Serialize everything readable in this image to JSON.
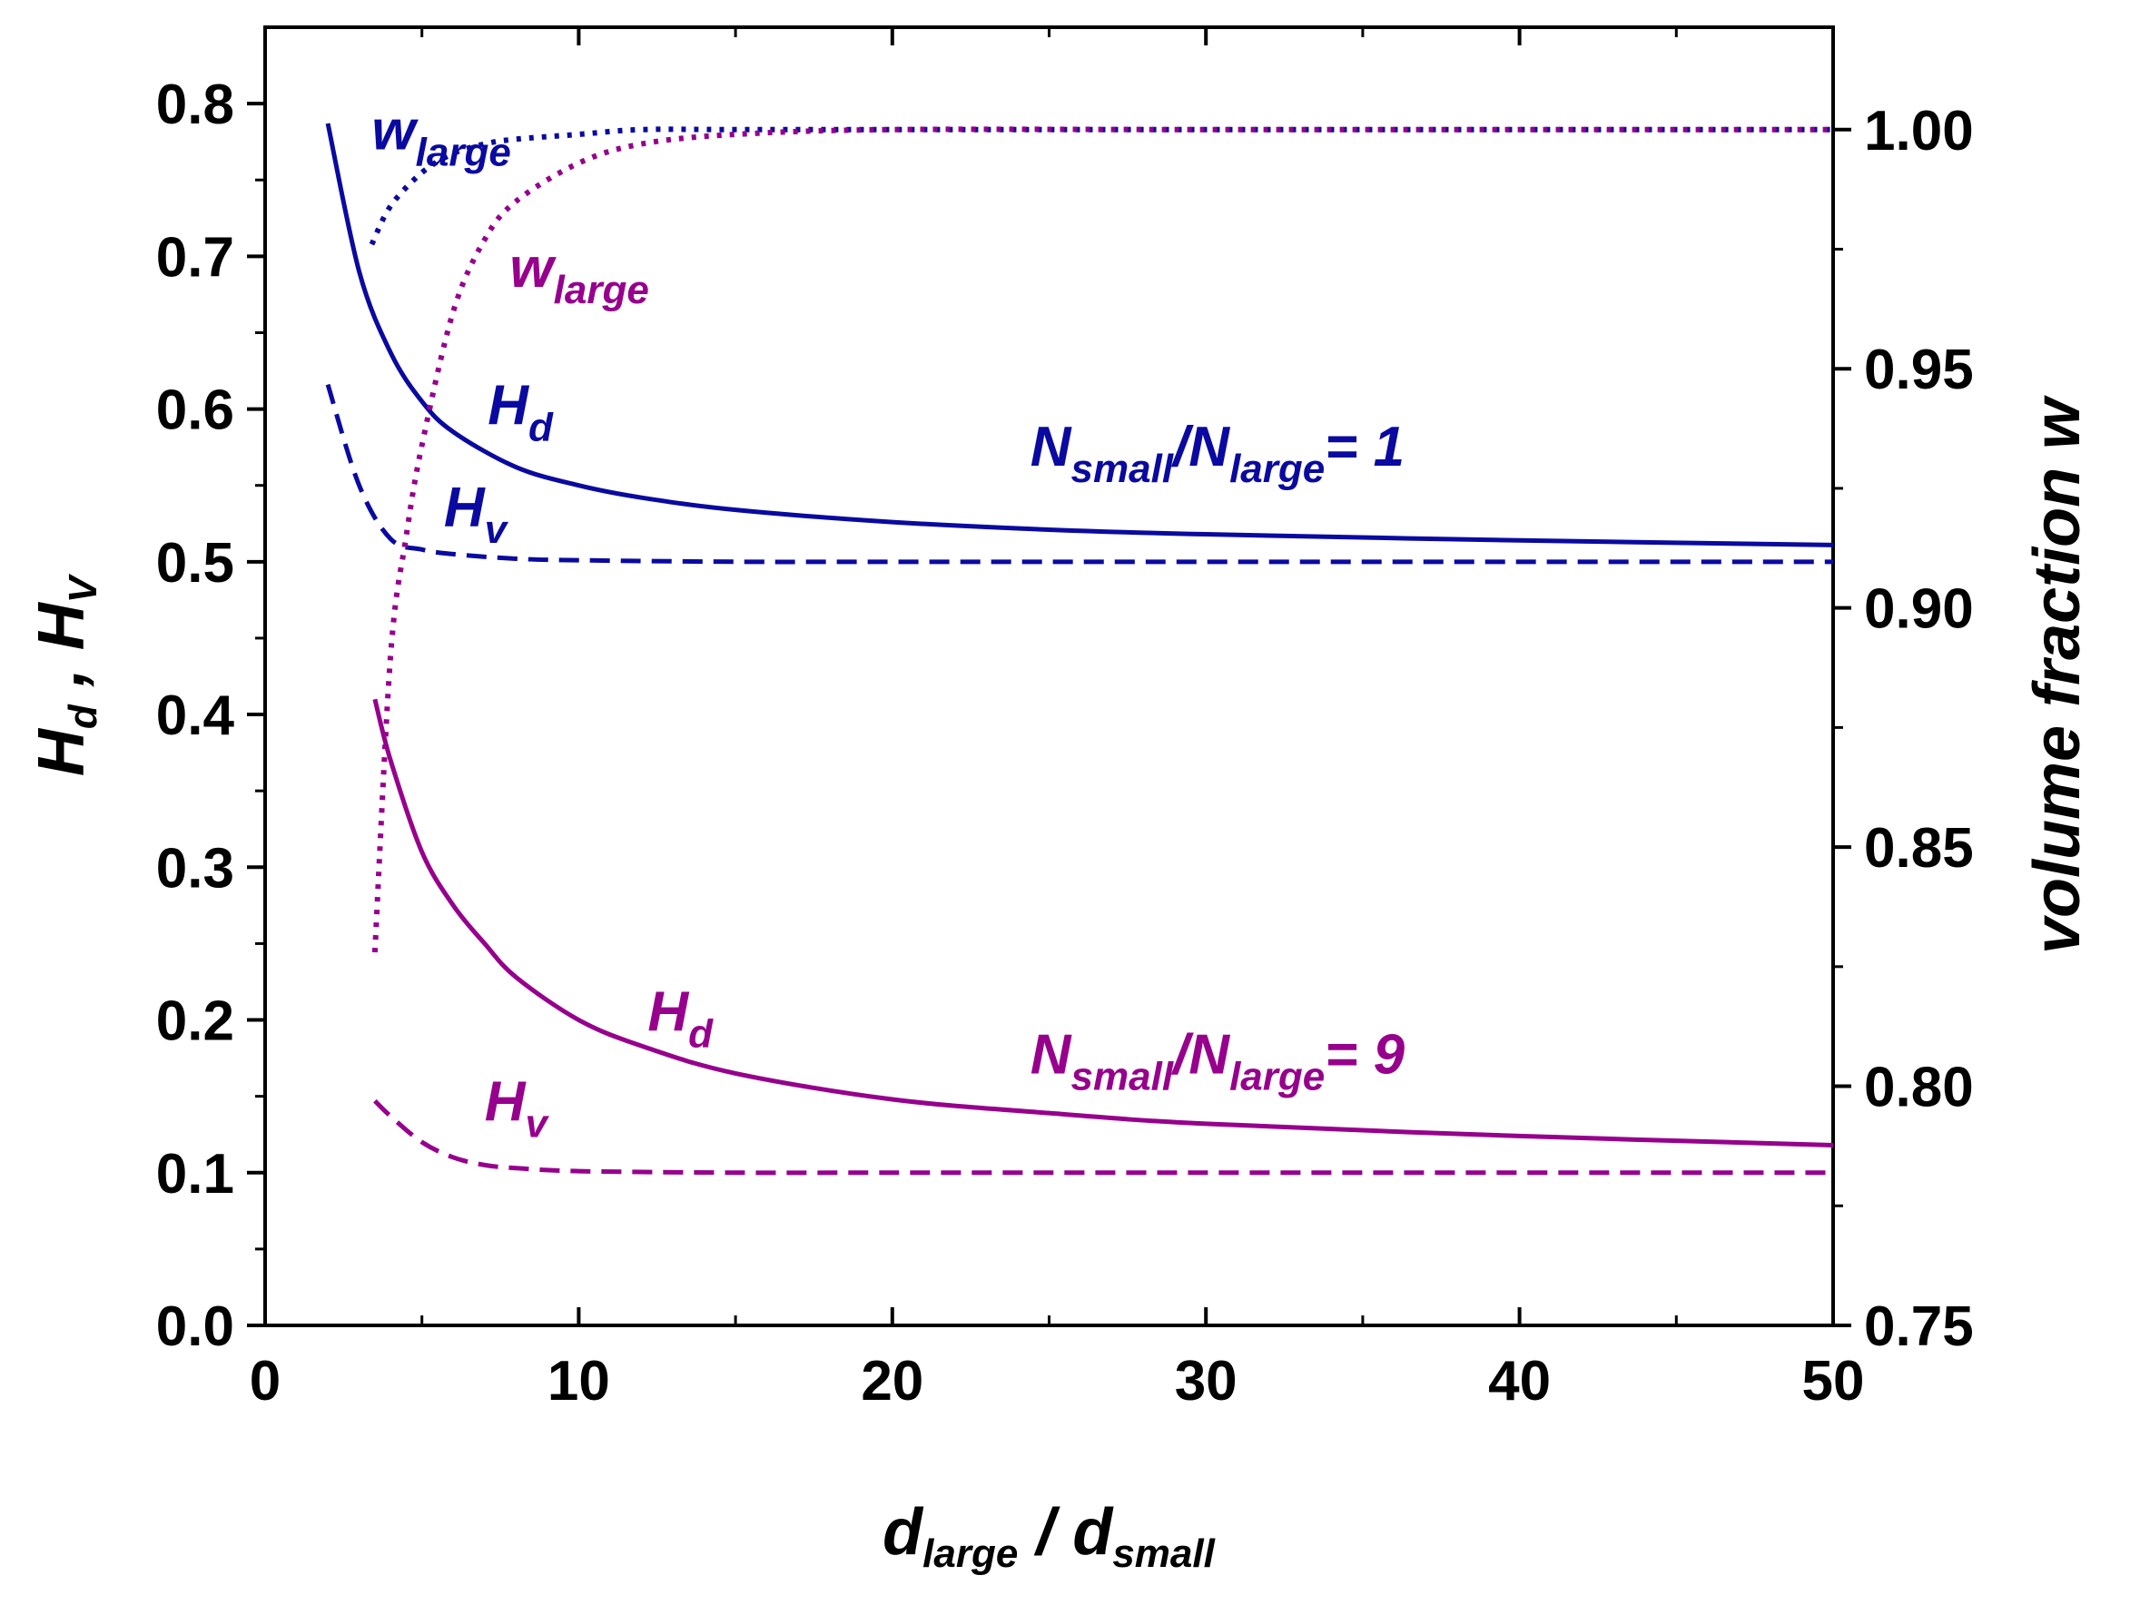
{
  "chart_data": {
    "type": "line",
    "xlabel": {
      "main": "d",
      "sub_left": "large",
      "sep": " / ",
      "main2": "d",
      "sub_right": "small"
    },
    "ylabel_left": {
      "a": "H",
      "a_sub": "d",
      "sep": " , ",
      "b": "H",
      "b_sub": "V"
    },
    "ylabel_right": "volume fraction w",
    "xlim": [
      0,
      50
    ],
    "ylim_left": [
      0,
      0.85
    ],
    "ylim_right": [
      0.75,
      1.0214
    ],
    "x_ticks": [
      "0",
      "10",
      "20",
      "30",
      "40",
      "50"
    ],
    "y_ticks_left": [
      "0.0",
      "0.1",
      "0.2",
      "0.3",
      "0.4",
      "0.5",
      "0.6",
      "0.7",
      "0.8"
    ],
    "y_ticks_right": [
      "0.75",
      "0.80",
      "0.85",
      "0.90",
      "0.95",
      "1.00"
    ],
    "colors": {
      "blue": "#0a0aa0",
      "purple": "#96008c"
    },
    "series": [
      {
        "name": "Hd (N=1)",
        "axis": "left",
        "color": "blue",
        "style": "solid",
        "x": [
          2,
          3,
          4,
          5,
          6,
          8,
          10,
          12,
          15,
          20,
          25,
          30,
          40,
          50
        ],
        "y": [
          0.787,
          0.69,
          0.637,
          0.605,
          0.585,
          0.562,
          0.55,
          0.542,
          0.534,
          0.526,
          0.521,
          0.518,
          0.514,
          0.511
        ]
      },
      {
        "name": "Hv (N=1)",
        "axis": "left",
        "color": "blue",
        "style": "dashed",
        "x": [
          2,
          3,
          4,
          5,
          6,
          8,
          10,
          15,
          20,
          30,
          40,
          50
        ],
        "y": [
          0.616,
          0.55,
          0.515,
          0.508,
          0.505,
          0.502,
          0.501,
          0.5,
          0.5,
          0.5,
          0.5,
          0.5
        ]
      },
      {
        "name": "w_large (N=1)",
        "axis": "right",
        "color": "blue",
        "style": "dotted",
        "x": [
          3.4,
          4,
          5,
          6,
          7,
          8,
          10,
          12,
          15,
          20,
          30,
          40,
          50
        ],
        "y": [
          0.976,
          0.984,
          0.991,
          0.995,
          0.997,
          0.998,
          0.999,
          1.0,
          1.0,
          1.0,
          1.0,
          1.0,
          1.0
        ]
      },
      {
        "name": "Hd (N=9)",
        "axis": "left",
        "color": "purple",
        "style": "solid",
        "x": [
          3.5,
          4,
          5,
          6,
          7,
          8,
          10,
          12,
          15,
          20,
          25,
          30,
          40,
          50
        ],
        "y": [
          0.41,
          0.37,
          0.31,
          0.275,
          0.25,
          0.228,
          0.2,
          0.183,
          0.165,
          0.148,
          0.139,
          0.132,
          0.124,
          0.118
        ]
      },
      {
        "name": "Hv (N=9)",
        "axis": "left",
        "color": "purple",
        "style": "dashed",
        "x": [
          3.5,
          4,
          5,
          6,
          7,
          8,
          10,
          15,
          20,
          30,
          40,
          50
        ],
        "y": [
          0.147,
          0.137,
          0.12,
          0.11,
          0.105,
          0.103,
          0.101,
          0.1,
          0.1,
          0.1,
          0.1,
          0.1
        ]
      },
      {
        "name": "w_large (N=9)",
        "axis": "right",
        "color": "purple",
        "style": "dotted",
        "x": [
          3.5,
          4,
          4.5,
          5,
          6,
          7,
          8,
          10,
          12,
          15,
          20,
          30,
          40,
          50
        ],
        "y": [
          0.828,
          0.89,
          0.915,
          0.934,
          0.962,
          0.977,
          0.985,
          0.993,
          0.997,
          0.999,
          1.0,
          1.0,
          1.0,
          1.0
        ]
      }
    ],
    "annotations": [
      {
        "id": "w-large-blue",
        "color": "blue",
        "main": "w",
        "sub": "large",
        "rest": "",
        "at_x": 3.4,
        "at_y_left": 0.77
      },
      {
        "id": "w-large-purple",
        "color": "purple",
        "main": "w",
        "sub": "large",
        "rest": "",
        "at_x": 7.8,
        "at_y_left": 0.68
      },
      {
        "id": "hd-blue",
        "color": "blue",
        "main": "H",
        "sub": "d",
        "rest": "",
        "at_x": 7.1,
        "at_y_left": 0.59
      },
      {
        "id": "hv-blue",
        "color": "blue",
        "main": "H",
        "sub": "v",
        "rest": "",
        "at_x": 5.7,
        "at_y_left": 0.523
      },
      {
        "id": "ratio-blue",
        "color": "blue",
        "main": "N",
        "sub": "small",
        "main2": "/N",
        "sub2": "large",
        "rest": "= 1",
        "at_x": 24.4,
        "at_y_left": 0.563
      },
      {
        "id": "hd-purple",
        "color": "purple",
        "main": "H",
        "sub": "d",
        "rest": "",
        "at_x": 12.2,
        "at_y_left": 0.193
      },
      {
        "id": "hv-purple",
        "color": "purple",
        "main": "H",
        "sub": "v",
        "rest": "",
        "at_x": 7.0,
        "at_y_left": 0.134
      },
      {
        "id": "ratio-purple",
        "color": "purple",
        "main": "N",
        "sub": "small",
        "main2": "/N",
        "sub2": "large",
        "rest": "= 9",
        "at_x": 24.4,
        "at_y_left": 0.165
      }
    ]
  }
}
